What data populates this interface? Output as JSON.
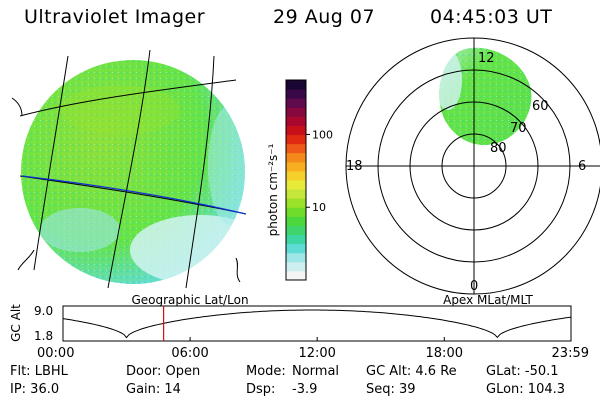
{
  "header": {
    "title": "Ultraviolet Imager",
    "date": "29 Aug 07",
    "time": "04:45:03 UT"
  },
  "colorbar": {
    "label": "photon cm⁻²s⁻¹",
    "ticks": [
      {
        "value": 100,
        "label": "100"
      },
      {
        "value": 10,
        "label": "10"
      }
    ],
    "scale": "log",
    "colors": [
      "#f4f4f4",
      "#cdeff0",
      "#9fe6e8",
      "#5fdcd6",
      "#3fd6a6",
      "#3fd56c",
      "#4cd83c",
      "#6fdc2c",
      "#9ae12a",
      "#c5e63a",
      "#e8ea3a",
      "#f5d02a",
      "#f7ae20",
      "#f58a1c",
      "#ef5a18",
      "#e02a12",
      "#c8101a",
      "#a8082e",
      "#86083e",
      "#5e0a4c",
      "#3a0848",
      "#1a0632"
    ]
  },
  "left_panel": {
    "caption": "Geographic Lat/Lon",
    "disk_colors": [
      "#63e34a",
      "#8fe03a",
      "#bff0ee",
      "#5fdcd6"
    ]
  },
  "right_panel": {
    "caption": "Apex MLat/MLT",
    "mlt_labels": {
      "top": "12",
      "left": "18",
      "right": "6",
      "bottom": "0"
    },
    "mlat_labels": [
      "60",
      "70",
      "80"
    ]
  },
  "timeline": {
    "ylabel": "GC Alt",
    "y_ticks": [
      "9.0",
      "1.8"
    ],
    "x_ticks": [
      "00:00",
      "06:00",
      "12:00",
      "18:00",
      "23:59"
    ],
    "current_time": "04:45",
    "marker_color": "#d81010"
  },
  "info": {
    "col1": [
      "Flt: LBHL",
      "IP: 36.0"
    ],
    "col2": [
      "Door: Open",
      "Gain: 14"
    ],
    "col3a": [
      "Mode:",
      "Dsp:"
    ],
    "col3b": [
      "Normal",
      "-3.9"
    ],
    "col4": [
      "GC Alt: 4.6 Re",
      "Seq: 39"
    ],
    "col5": [
      "GLat: -50.1",
      "GLon: 104.3"
    ]
  }
}
